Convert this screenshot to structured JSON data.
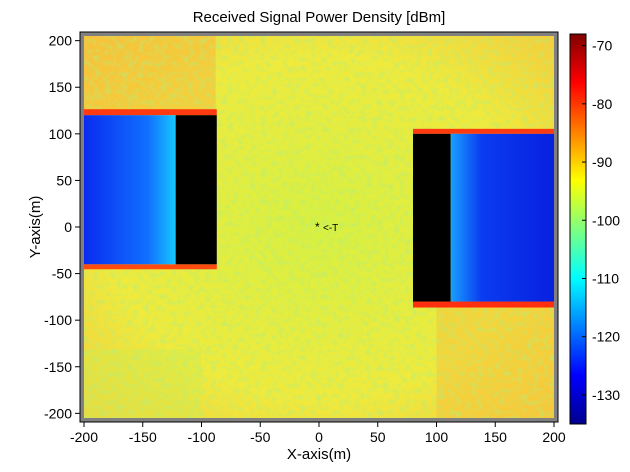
{
  "chart_data": {
    "type": "heatmap",
    "title": "Received Signal Power Density [dBm]",
    "xlabel": "X-axis(m)",
    "ylabel": "Y-axis(m)",
    "xlim": [
      -200,
      200
    ],
    "ylim": [
      -205,
      205
    ],
    "xticks": [
      -200,
      -150,
      -100,
      -50,
      0,
      50,
      100,
      150,
      200
    ],
    "yticks": [
      200,
      150,
      100,
      50,
      0,
      -50,
      -100,
      -150,
      -200
    ],
    "colorbar": {
      "range": [
        -135,
        -68
      ],
      "ticks": [
        -70,
        -80,
        -90,
        -100,
        -110,
        -120,
        -130
      ],
      "colormap": "jet"
    },
    "buildings": [
      {
        "x": [
          -122,
          -87
        ],
        "y": [
          -40,
          120
        ]
      },
      {
        "x": [
          80,
          112
        ],
        "y": [
          -80,
          100
        ]
      }
    ],
    "transmitter": {
      "x": 0,
      "y": 0,
      "label": "T"
    }
  }
}
